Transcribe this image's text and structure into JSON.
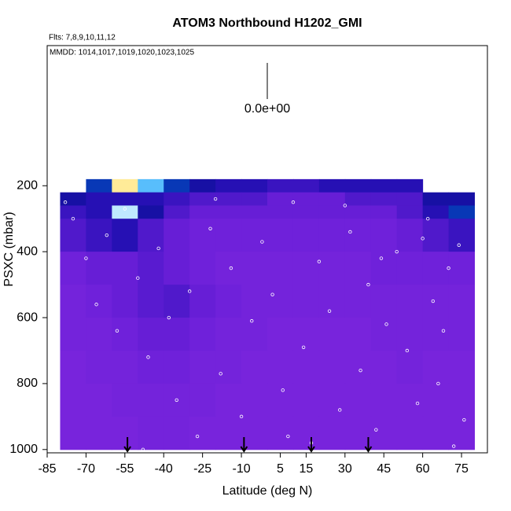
{
  "chart_data": {
    "type": "curtain",
    "title": "ATOM3 Northbound H1202_GMI",
    "subtitle": "Flts: 7,8,9,10,11,12",
    "annotation": "MMDD: 1014,1017,1019,1020,1023,1025",
    "colorbar_label": "0.0e+00",
    "x_label": "Latitude (deg N)",
    "y_label": "PSXC (mbar)",
    "xlim": [
      -85,
      85
    ],
    "ylim": [
      1010,
      -225
    ],
    "xticks": [
      -85,
      -70,
      -55,
      -40,
      -25,
      -10,
      5,
      15,
      30,
      45,
      60,
      75
    ],
    "yticks": [
      200,
      400,
      600,
      800,
      1000
    ],
    "colors": [
      "#8a2be2",
      "#6a1fd8",
      "#2a10b8",
      "#00108c",
      "#1060e0",
      "#60c8ff",
      "#ffffff",
      "#ffe060"
    ],
    "lat_edges": [
      -80,
      -70,
      -60,
      -50,
      -40,
      -30,
      -20,
      -10,
      0,
      10,
      20,
      30,
      40,
      50,
      60,
      70,
      80
    ],
    "p_edges": [
      180,
      220,
      260,
      300,
      400,
      500,
      600,
      700,
      800,
      900,
      1000
    ],
    "grid_values": [
      [
        null,
        0.5,
        0.95,
        0.7,
        0.5,
        0.35,
        0.3,
        0.3,
        0.25,
        0.25,
        0.3,
        0.3,
        0.3,
        0.3,
        null,
        null
      ],
      [
        0.35,
        0.3,
        0.3,
        0.3,
        0.25,
        0.2,
        0.2,
        0.2,
        0.15,
        0.15,
        0.15,
        0.2,
        0.2,
        0.2,
        0.35,
        0.35
      ],
      [
        0.25,
        0.3,
        0.8,
        0.35,
        0.2,
        0.15,
        0.15,
        0.15,
        0.15,
        0.15,
        0.15,
        0.15,
        0.15,
        0.2,
        0.3,
        0.5
      ],
      [
        0.2,
        0.25,
        0.3,
        0.2,
        0.15,
        0.12,
        0.12,
        0.12,
        0.12,
        0.12,
        0.12,
        0.12,
        0.12,
        0.15,
        0.2,
        0.25
      ],
      [
        0.12,
        0.15,
        0.15,
        0.18,
        0.15,
        0.12,
        0.1,
        0.1,
        0.1,
        0.1,
        0.1,
        0.1,
        0.12,
        0.12,
        0.12,
        0.12
      ],
      [
        0.1,
        0.12,
        0.15,
        0.18,
        0.2,
        0.15,
        0.12,
        0.1,
        0.1,
        0.1,
        0.1,
        0.1,
        0.1,
        0.1,
        0.1,
        0.1
      ],
      [
        0.1,
        0.1,
        0.12,
        0.15,
        0.15,
        0.12,
        0.1,
        0.1,
        0.08,
        0.08,
        0.08,
        0.08,
        0.1,
        0.1,
        0.1,
        0.1
      ],
      [
        0.08,
        0.1,
        0.1,
        0.12,
        0.12,
        0.1,
        0.1,
        0.08,
        0.08,
        0.08,
        0.08,
        0.08,
        0.08,
        0.1,
        0.08,
        0.08
      ],
      [
        0.08,
        0.08,
        0.1,
        0.1,
        0.1,
        0.1,
        0.08,
        0.08,
        0.08,
        0.08,
        0.08,
        0.08,
        0.08,
        0.08,
        0.08,
        0.08
      ],
      [
        0.08,
        0.08,
        0.08,
        0.1,
        0.1,
        0.08,
        0.08,
        0.08,
        0.08,
        0.08,
        0.08,
        0.08,
        0.08,
        0.08,
        0.08,
        0.08
      ]
    ],
    "points": {
      "x": [
        -75,
        -70,
        -66,
        -62,
        -58,
        -55,
        -50,
        -46,
        -42,
        -38,
        -35,
        -30,
        -27,
        -22,
        -18,
        -14,
        -10,
        -6,
        -2,
        2,
        6,
        10,
        14,
        17,
        20,
        24,
        28,
        32,
        36,
        39,
        42,
        46,
        50,
        54,
        58,
        62,
        64,
        66,
        70,
        72,
        74,
        76,
        -78,
        -48,
        -20,
        8,
        30,
        44,
        60,
        68
      ],
      "y": [
        300,
        420,
        560,
        350,
        640,
        270,
        480,
        720,
        390,
        600,
        850,
        520,
        960,
        330,
        770,
        450,
        900,
        610,
        370,
        530,
        820,
        250,
        690,
        980,
        430,
        580,
        880,
        340,
        760,
        500,
        940,
        620,
        400,
        700,
        860,
        300,
        550,
        800,
        450,
        990,
        380,
        910,
        250,
        1000,
        240,
        960,
        260,
        420,
        360,
        640
      ],
      "color": "#ffffff"
    },
    "arrows": [
      -54,
      -9,
      17,
      39
    ]
  }
}
